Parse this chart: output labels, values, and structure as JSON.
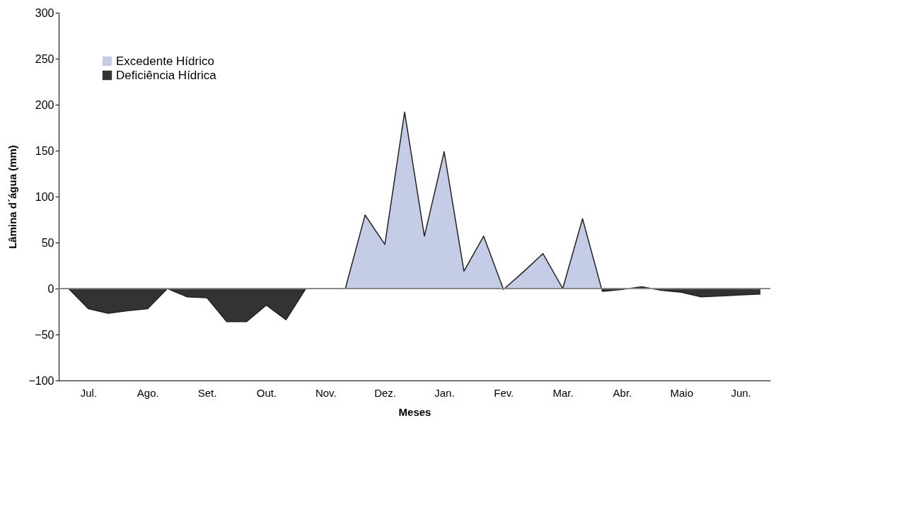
{
  "chart_data": {
    "type": "area",
    "xlabel": "Meses",
    "ylabel": "Lâmina d´água (mm)",
    "categories": [
      null,
      "Jul.",
      null,
      null,
      "Ago.",
      null,
      null,
      "Set.",
      null,
      null,
      "Out.",
      null,
      null,
      "Nov.",
      null,
      null,
      "Dez.",
      null,
      null,
      "Jan.",
      null,
      null,
      "Fev.",
      null,
      null,
      "Mar.",
      null,
      null,
      "Abr.",
      null,
      null,
      "Maio",
      null,
      null,
      "Jun.",
      null
    ],
    "series": [
      {
        "name": "Excedente Hídrico",
        "color": "#c5cce6",
        "values": [
          null,
          null,
          null,
          null,
          null,
          null,
          null,
          null,
          null,
          null,
          null,
          null,
          null,
          null,
          0,
          80,
          48,
          192,
          57,
          149,
          19,
          57,
          -1,
          18,
          38,
          0,
          76,
          -3,
          null,
          null,
          null,
          null,
          null,
          null,
          null,
          null
        ]
      },
      {
        "name": "Deficiência Hídrica",
        "color": "#333333",
        "values": [
          0,
          -22,
          -27,
          -24,
          -22,
          0,
          -9,
          -10,
          -36,
          -36,
          -18,
          -34,
          0,
          0,
          0,
          null,
          null,
          null,
          null,
          null,
          null,
          null,
          null,
          null,
          null,
          null,
          null,
          -3,
          -1,
          2,
          -2,
          -4,
          -9,
          -8,
          -7,
          -6
        ]
      }
    ],
    "ylim": [
      -100,
      300
    ],
    "yticks": [
      -100,
      -50,
      0,
      50,
      100,
      150,
      200,
      250,
      300
    ],
    "ref_lines": [
      {
        "axis": "y",
        "value": 0,
        "color": "#888888"
      }
    ],
    "grid": false,
    "legend": "top left"
  }
}
